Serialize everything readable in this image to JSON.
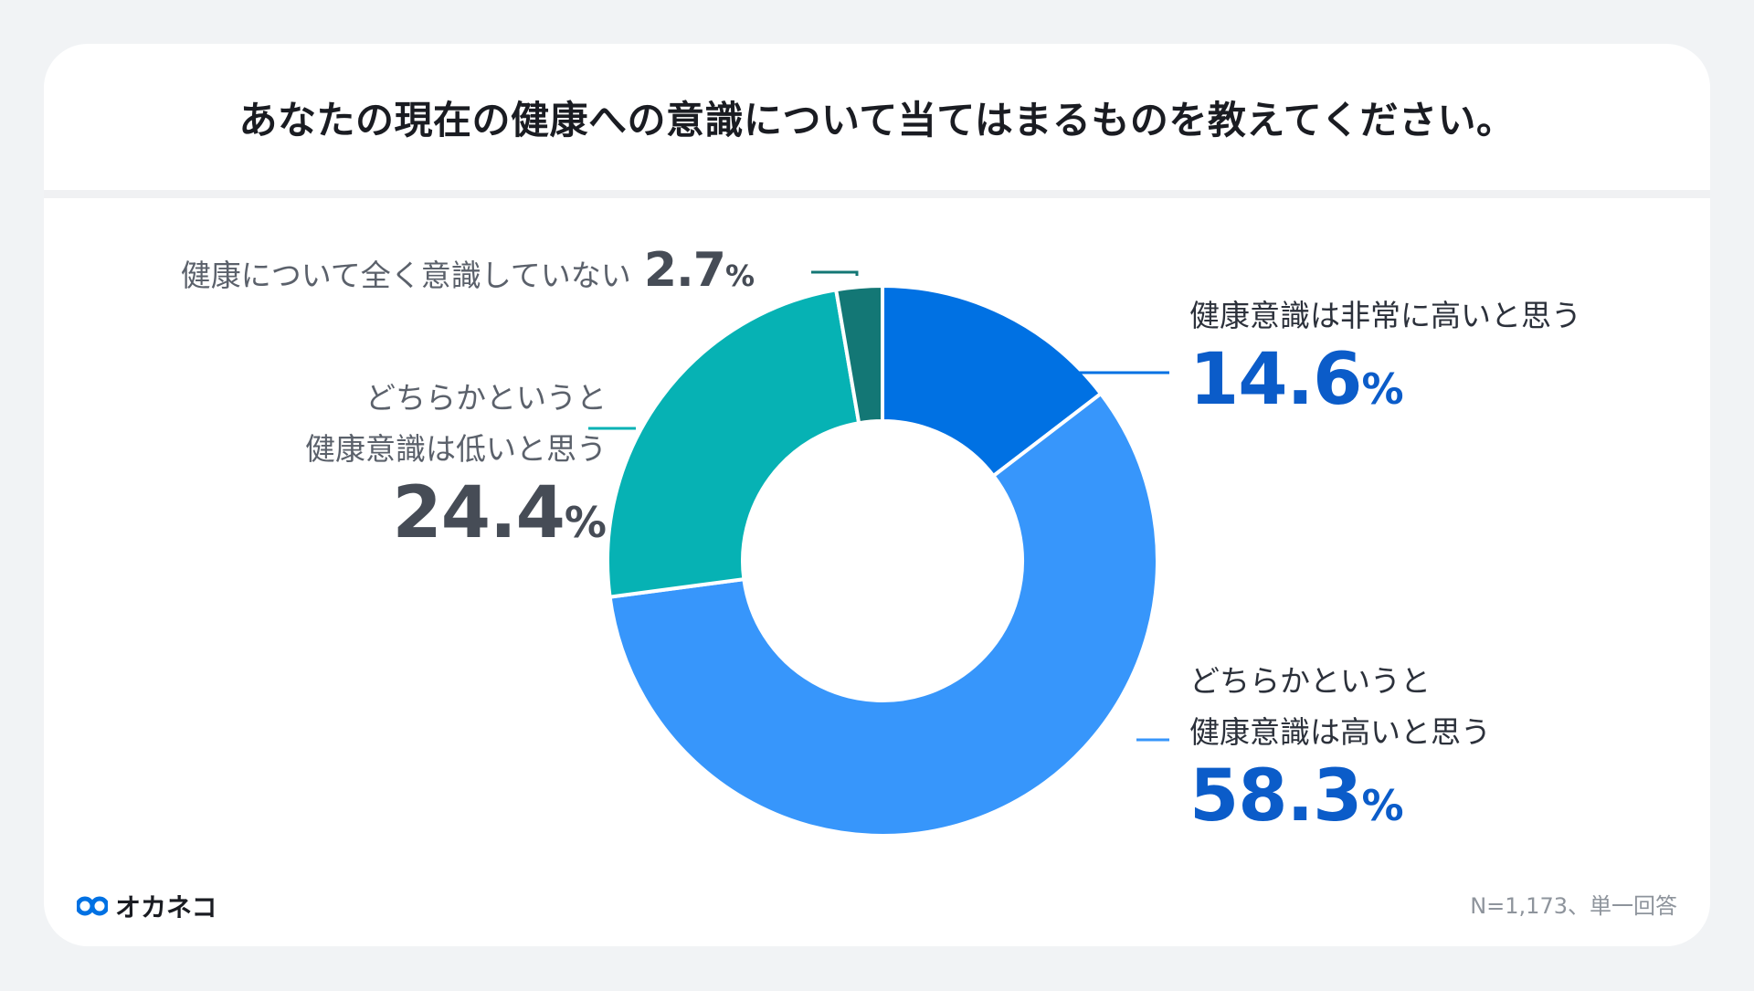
{
  "title": "あなたの現在の健康への意識について当てはまるものを教えてください。",
  "chart_data": {
    "type": "pie",
    "style": "donut",
    "series": [
      {
        "name": "健康意識は非常に高いと思う",
        "label_lines": [
          "健康意識は非常に高いと思う"
        ],
        "value": 14.6,
        "value_text": "14.6",
        "color": "#0071e3"
      },
      {
        "name": "どちらかというと健康意識は高いと思う",
        "label_lines": [
          "どちらかというと",
          "健康意識は高いと思う"
        ],
        "value": 58.3,
        "value_text": "58.3",
        "color": "#3796fb"
      },
      {
        "name": "どちらかというと健康意識は低いと思う",
        "label_lines": [
          "どちらかというと",
          "健康意識は低いと思う"
        ],
        "value": 24.4,
        "value_text": "24.4",
        "color": "#06b2b4"
      },
      {
        "name": "健康について全く意識していない",
        "label_lines": [
          "健康について全く意識していない"
        ],
        "value": 2.7,
        "value_text": "2.7",
        "color": "#137775"
      }
    ],
    "unit": "%"
  },
  "footer": {
    "note": "N=1,173、単一回答",
    "logo_text": "オカネコ",
    "logo_color": "#0071e3"
  }
}
